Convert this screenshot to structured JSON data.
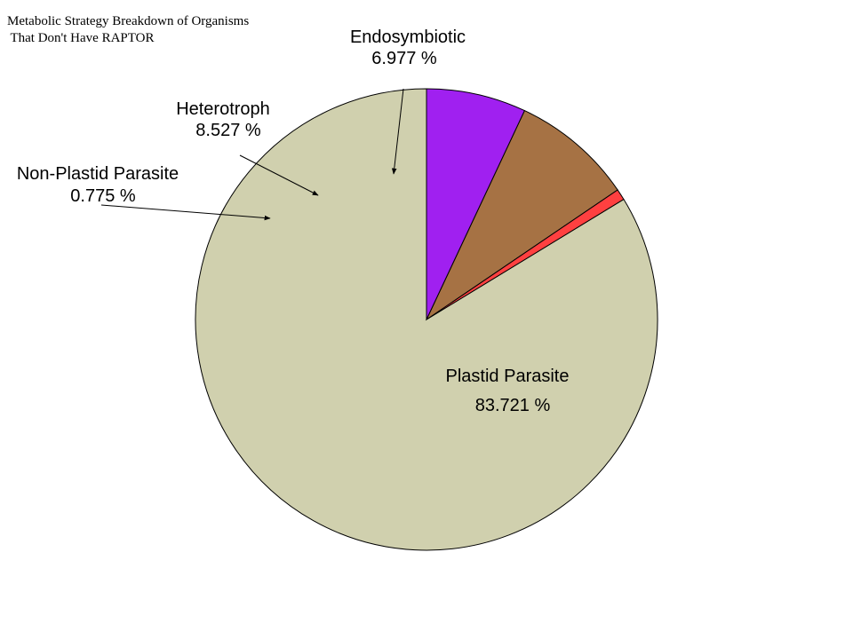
{
  "chart_data": {
    "type": "pie",
    "title_lines": [
      "Metabolic Strategy Breakdown of Organisms",
      " That Don't Have RAPTOR"
    ],
    "start_angle_deg": 90,
    "direction": "counterclockwise",
    "slices": [
      {
        "name": "Plastid Parasite",
        "value": 83.721,
        "label": "83.721 %",
        "color": "#d0d0ae"
      },
      {
        "name": "Non-Plastid Parasite",
        "value": 0.775,
        "label": "0.775 %",
        "color": "#ff4040"
      },
      {
        "name": "Heterotroph",
        "value": 8.527,
        "label": "8.527 %",
        "color": "#a67244"
      },
      {
        "name": "Endosymbiotic",
        "value": 6.977,
        "label": "6.977 %",
        "color": "#a020f0"
      }
    ]
  }
}
